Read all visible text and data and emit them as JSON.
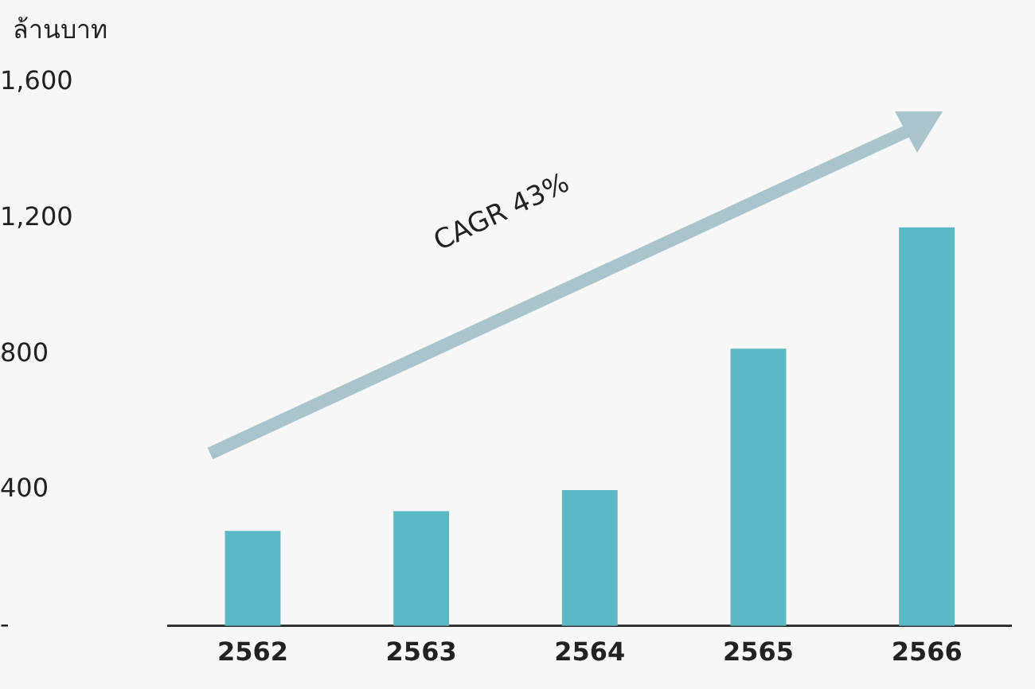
{
  "chart_data": {
    "type": "bar",
    "ylabel": "ล้านบาท",
    "categories": [
      "2562",
      "2563",
      "2564",
      "2565",
      "2566"
    ],
    "values": [
      280,
      338,
      400,
      817,
      1174
    ],
    "color": "#5bb8c4",
    "ylim": [
      0,
      1600
    ],
    "yticks": [
      {
        "value": 0,
        "label": "-"
      },
      {
        "value": 400,
        "label": "400"
      },
      {
        "value": 800,
        "label": "800"
      },
      {
        "value": 1200,
        "label": "1,200"
      },
      {
        "value": 1600,
        "label": "1,600"
      }
    ],
    "grid": false,
    "legend": false,
    "annotations": [
      "CAGR 43%"
    ]
  }
}
